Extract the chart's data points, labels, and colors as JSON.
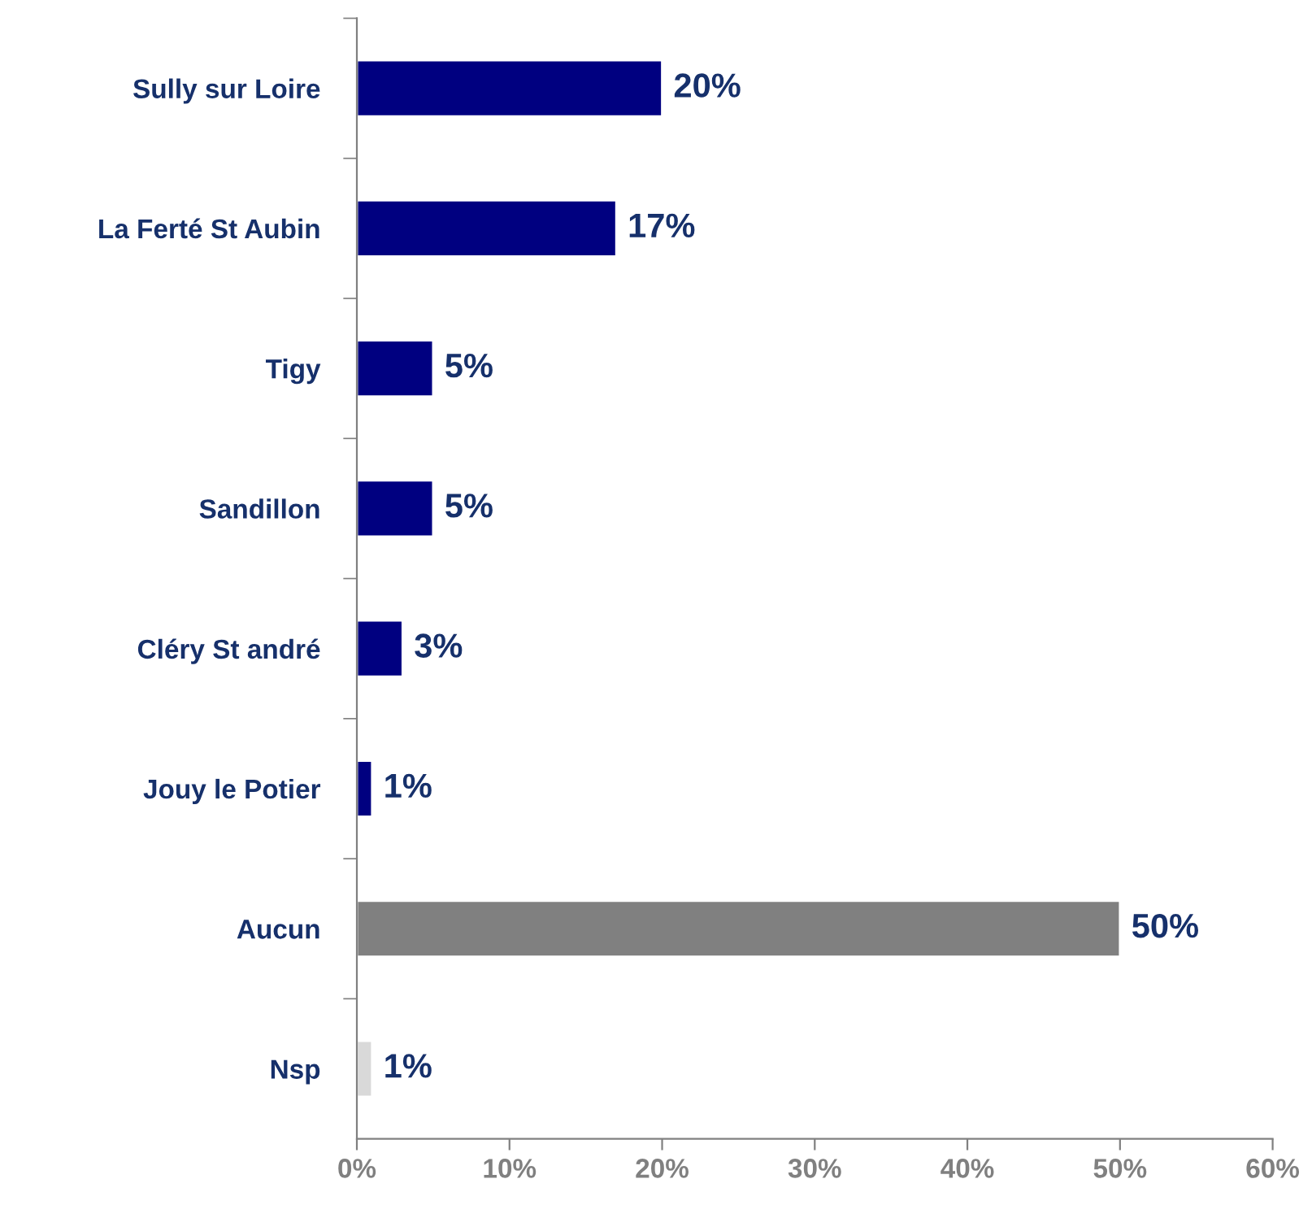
{
  "chart_data": {
    "type": "bar",
    "orientation": "horizontal",
    "categories": [
      "Sully sur Loire",
      "La Ferté St Aubin",
      "Tigy",
      "Sandillon",
      "Cléry St andré",
      "Jouy le Potier",
      "Aucun",
      "Nsp"
    ],
    "values": [
      20,
      17,
      5,
      5,
      3,
      1,
      50,
      1
    ],
    "colors": [
      "#000080",
      "#000080",
      "#000080",
      "#000080",
      "#000080",
      "#000080",
      "#808080",
      "#d9d9d9"
    ],
    "value_labels": [
      "20%",
      "17%",
      "5%",
      "5%",
      "3%",
      "1%",
      "50%",
      "1%"
    ],
    "xlim": [
      0,
      60
    ],
    "xticks": [
      {
        "value": 0,
        "label": "0%"
      },
      {
        "value": 10,
        "label": "10%"
      },
      {
        "value": 20,
        "label": "20%"
      },
      {
        "value": 30,
        "label": "30%"
      },
      {
        "value": 40,
        "label": "40%"
      },
      {
        "value": 50,
        "label": "50%"
      },
      {
        "value": 60,
        "label": "60%"
      }
    ],
    "grid": false,
    "legend": false
  }
}
